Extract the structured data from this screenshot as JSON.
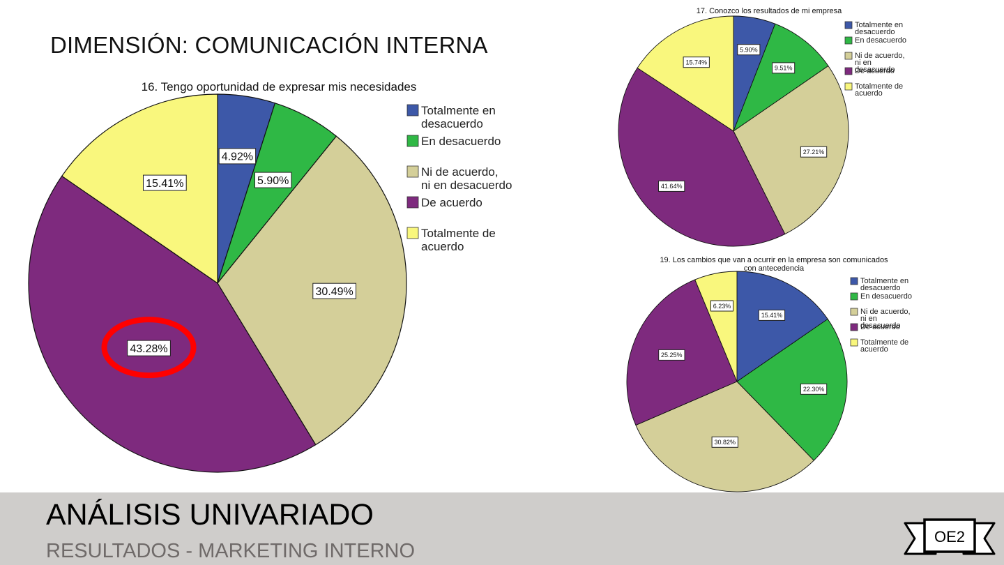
{
  "page": {
    "heading": "DIMENSIÓN: COMUNICACIÓN INTERNA",
    "footer_title": "ANÁLISIS UNIVARIADO",
    "footer_subtitle": "RESULTADOS - MARKETING INTERNO",
    "badge": "OE2",
    "highlight_color": "#ff0000"
  },
  "legend_categories": [
    "Totalmente en desacuerdo",
    "En desacuerdo",
    "Ni de acuerdo, ni en desacuerdo",
    "De acuerdo",
    "Totalmente de acuerdo"
  ],
  "colors": [
    "#3d58a8",
    "#2fb845",
    "#d4cf99",
    "#7e2a7e",
    "#f9f77d"
  ],
  "chart_data": [
    {
      "type": "pie",
      "title": "16. Tengo oportunidad de expresar mis necesidades",
      "categories": [
        "Totalmente en desacuerdo",
        "En desacuerdo",
        "Ni de acuerdo, ni en desacuerdo",
        "De acuerdo",
        "Totalmente de acuerdo"
      ],
      "values": [
        4.92,
        5.9,
        30.49,
        43.28,
        15.41
      ],
      "labels": [
        "4.92%",
        "5.90%",
        "30.49%",
        "43.28%",
        "15.41%"
      ],
      "highlighted": "43.28%",
      "legend_position": "right"
    },
    {
      "type": "pie",
      "title": "17. Conozco los resultados de mi empresa",
      "categories": [
        "Totalmente en desacuerdo",
        "En desacuerdo",
        "Ni de acuerdo, ni en desacuerdo",
        "De acuerdo",
        "Totalmente de acuerdo"
      ],
      "values": [
        5.9,
        9.51,
        27.21,
        41.64,
        15.74
      ],
      "labels": [
        "5.90%",
        "9.51%",
        "27.21%",
        "41.64%",
        "15.74%"
      ],
      "legend_position": "right"
    },
    {
      "type": "pie",
      "title": "19. Los cambios que van a ocurrir en la empresa son comunicados con antecedencia",
      "categories": [
        "Totalmente en desacuerdo",
        "En desacuerdo",
        "Ni de acuerdo, ni en desacuerdo",
        "De acuerdo",
        "Totalmente de acuerdo"
      ],
      "values": [
        15.41,
        22.3,
        30.82,
        25.25,
        6.23
      ],
      "labels": [
        "15.41%",
        "22.30%",
        "30.82%",
        "25.25%",
        "6.23%"
      ],
      "legend_position": "right"
    }
  ]
}
